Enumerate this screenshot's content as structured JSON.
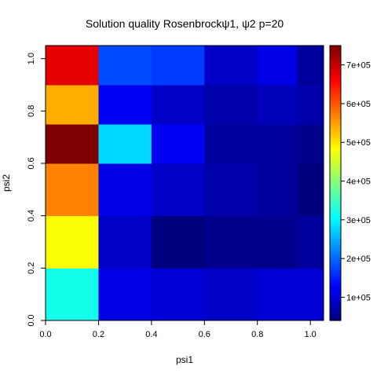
{
  "chart_data": {
    "type": "heatmap",
    "title": "Solution quality Rosenbrockψ1, ψ2 p=20",
    "xlabel": "psi1",
    "ylabel": "psi2",
    "x_edges": [
      0.0,
      0.2,
      0.4,
      0.6,
      0.8,
      0.95,
      1.05
    ],
    "y_edges": [
      0.0,
      0.2,
      0.4,
      0.6,
      0.75,
      0.9,
      1.05
    ],
    "xlim": [
      0.0,
      1.05
    ],
    "ylim": [
      0.0,
      1.05
    ],
    "x_ticks": [
      "0.0",
      "0.2",
      "0.4",
      "0.6",
      "0.8",
      "1.0"
    ],
    "y_ticks": [
      "0.0",
      "0.2",
      "0.4",
      "0.6",
      "0.8",
      "1.0"
    ],
    "values": [
      [
        320000,
        110000,
        100000,
        90000,
        100000,
        100000
      ],
      [
        480000,
        90000,
        40000,
        50000,
        50000,
        60000
      ],
      [
        570000,
        110000,
        90000,
        70000,
        60000,
        40000
      ],
      [
        750000,
        280000,
        120000,
        60000,
        60000,
        50000
      ],
      [
        540000,
        120000,
        90000,
        70000,
        80000,
        70000
      ],
      [
        680000,
        180000,
        170000,
        90000,
        110000,
        60000
      ]
    ],
    "zlim": [
      40000,
      750000
    ],
    "colorbar_ticks": [
      "1e+05",
      "2e+05",
      "3e+05",
      "4e+05",
      "5e+05",
      "6e+05",
      "7e+05"
    ],
    "colormap": "jet",
    "colormap_stops": [
      "#00007F",
      "#0000FF",
      "#007FFF",
      "#00FFFF",
      "#7FFF7F",
      "#FFFF00",
      "#FF7F00",
      "#FF0000",
      "#7F0000"
    ]
  }
}
